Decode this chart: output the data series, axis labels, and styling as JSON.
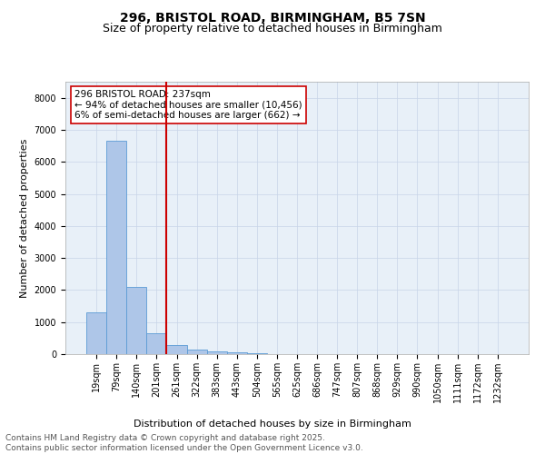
{
  "title_line1": "296, BRISTOL ROAD, BIRMINGHAM, B5 7SN",
  "title_line2": "Size of property relative to detached houses in Birmingham",
  "xlabel": "Distribution of detached houses by size in Birmingham",
  "ylabel": "Number of detached properties",
  "categories": [
    "19sqm",
    "79sqm",
    "140sqm",
    "201sqm",
    "261sqm",
    "322sqm",
    "383sqm",
    "443sqm",
    "504sqm",
    "565sqm",
    "625sqm",
    "686sqm",
    "747sqm",
    "807sqm",
    "868sqm",
    "929sqm",
    "990sqm",
    "1050sqm",
    "1111sqm",
    "1172sqm",
    "1232sqm"
  ],
  "values": [
    1300,
    6650,
    2100,
    650,
    280,
    130,
    90,
    55,
    30,
    0,
    0,
    0,
    0,
    0,
    0,
    0,
    0,
    0,
    0,
    0,
    0
  ],
  "bar_color": "#aec6e8",
  "bar_edge_color": "#5b9bd5",
  "vline_x": 3.5,
  "vline_color": "#cc0000",
  "annotation_text": "296 BRISTOL ROAD: 237sqm\n← 94% of detached houses are smaller (10,456)\n6% of semi-detached houses are larger (662) →",
  "annotation_box_color": "#cc0000",
  "ylim": [
    0,
    8500
  ],
  "yticks": [
    0,
    1000,
    2000,
    3000,
    4000,
    5000,
    6000,
    7000,
    8000
  ],
  "plot_bg_color": "#e8f0f8",
  "background_color": "#ffffff",
  "grid_color": "#c8d4e8",
  "footer_line1": "Contains HM Land Registry data © Crown copyright and database right 2025.",
  "footer_line2": "Contains public sector information licensed under the Open Government Licence v3.0.",
  "title_fontsize": 10,
  "subtitle_fontsize": 9,
  "axis_label_fontsize": 8,
  "tick_fontsize": 7,
  "annotation_fontsize": 7.5,
  "footer_fontsize": 6.5
}
